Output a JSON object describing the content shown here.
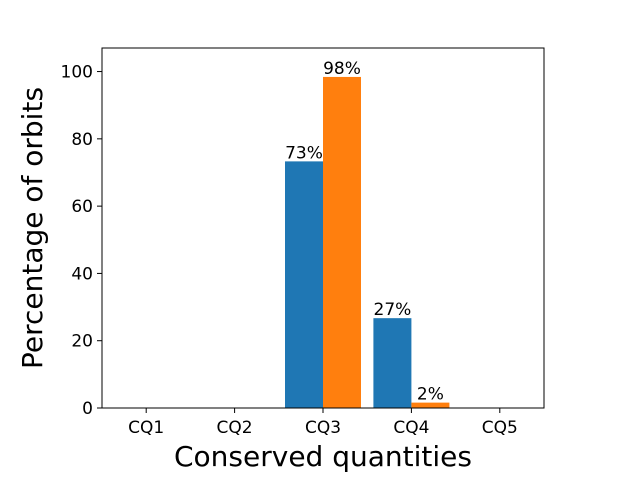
{
  "chart_data": {
    "type": "bar",
    "xlabel": "Conserved quantities",
    "ylabel": "Percentage of orbits",
    "categories": [
      "CQ1",
      "CQ2",
      "CQ3",
      "CQ4",
      "CQ5"
    ],
    "ylim": [
      0,
      107
    ],
    "yticks": [
      0,
      20,
      40,
      60,
      80,
      100
    ],
    "grid": false,
    "legend": "none",
    "series": [
      {
        "color": "#1f77b4",
        "values": [
          0,
          0,
          73.3,
          26.7,
          0
        ],
        "labels": [
          "",
          "",
          "73%",
          "27%",
          ""
        ]
      },
      {
        "color": "#ff7f0e",
        "values": [
          0,
          0,
          98.4,
          1.6,
          0
        ],
        "labels": [
          "",
          "",
          "98%",
          "2%",
          ""
        ]
      }
    ]
  }
}
